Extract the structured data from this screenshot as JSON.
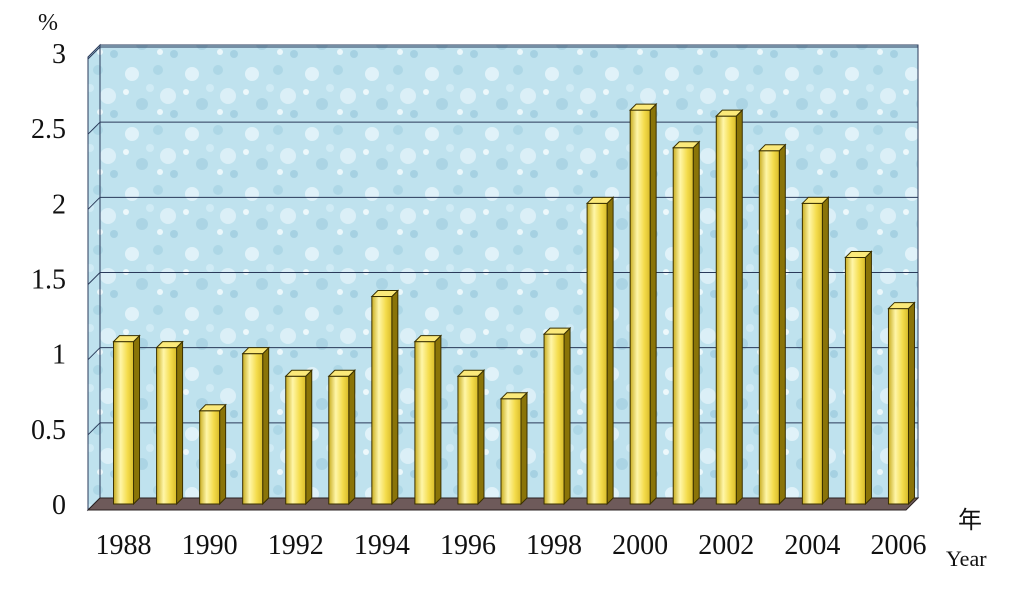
{
  "chart_data": {
    "type": "bar",
    "y_unit": "%",
    "x_unit_zh": "年",
    "x_unit_en": "Year",
    "categories": [
      "1988",
      "1989",
      "1990",
      "1991",
      "1992",
      "1993",
      "1994",
      "1995",
      "1996",
      "1997",
      "1998",
      "1999",
      "2000",
      "2001",
      "2002",
      "2003",
      "2004",
      "2005",
      "2006"
    ],
    "values": [
      1.08,
      1.04,
      0.62,
      1.0,
      0.85,
      0.85,
      1.38,
      1.08,
      0.85,
      0.7,
      1.13,
      2.0,
      2.62,
      2.37,
      2.58,
      2.35,
      2.0,
      1.64,
      1.3
    ],
    "x_tick_labels": [
      "1988",
      "1990",
      "1992",
      "1994",
      "1996",
      "1998",
      "2000",
      "2002",
      "2004",
      "2006"
    ],
    "y_ticks": [
      "0",
      "0.5",
      "1",
      "1.5",
      "2",
      "2.5",
      "3"
    ],
    "ylim": [
      0,
      3
    ],
    "grid": true,
    "colors": {
      "bar_face": "#f4dc4c",
      "bar_highlight": "#fff6a8",
      "bar_side": "#8a7408",
      "bar_top": "#fbe97a",
      "bar_outline": "#3a3000",
      "plot_bg": "#bfe3ee",
      "floor": "#6e5a5a",
      "gridline": "#2a3a5a"
    }
  }
}
